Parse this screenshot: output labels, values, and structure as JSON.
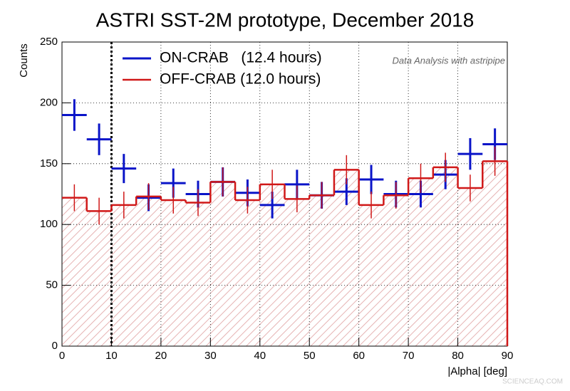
{
  "chart_data": {
    "type": "histogram",
    "title": "ASTRI SST-2M prototype, December 2018",
    "x_label": "|Alpha| [deg]",
    "y_label": "Counts",
    "annotation": "Data Analysis with astripipe",
    "watermark": "SCIENCEAQ.COM",
    "bins": [
      0,
      5,
      10,
      15,
      20,
      25,
      30,
      35,
      40,
      45,
      50,
      55,
      60,
      65,
      70,
      75,
      80,
      85,
      90
    ],
    "series": [
      {
        "name": "ON-CRAB   (12.4 hours)",
        "color": "#0a14c8",
        "style": "crosses",
        "values": [
          190,
          170,
          146,
          122,
          134,
          125,
          135,
          126,
          116,
          133,
          124,
          127,
          137,
          125,
          125,
          141,
          158,
          166
        ],
        "errors": [
          13,
          13,
          12,
          11,
          12,
          11,
          12,
          11,
          11,
          12,
          11,
          11,
          12,
          11,
          11,
          12,
          13,
          13
        ]
      },
      {
        "name": "OFF-CRAB (12.0 hours)",
        "color": "#d01818",
        "style": "steps",
        "values": [
          122,
          111,
          116,
          123,
          120,
          118,
          135,
          120,
          133,
          121,
          124,
          145,
          116,
          124,
          138,
          147,
          130,
          152
        ],
        "errors": [
          11,
          11,
          11,
          11,
          11,
          11,
          12,
          11,
          12,
          11,
          11,
          12,
          11,
          11,
          12,
          12,
          11,
          12
        ]
      }
    ],
    "cut_line": 10,
    "xlim": [
      0,
      90
    ],
    "ylim": [
      0,
      250
    ],
    "xticks": [
      0,
      10,
      20,
      30,
      40,
      50,
      60,
      70,
      80,
      90
    ],
    "yticks": [
      0,
      50,
      100,
      150,
      200,
      250
    ],
    "grid": true
  }
}
